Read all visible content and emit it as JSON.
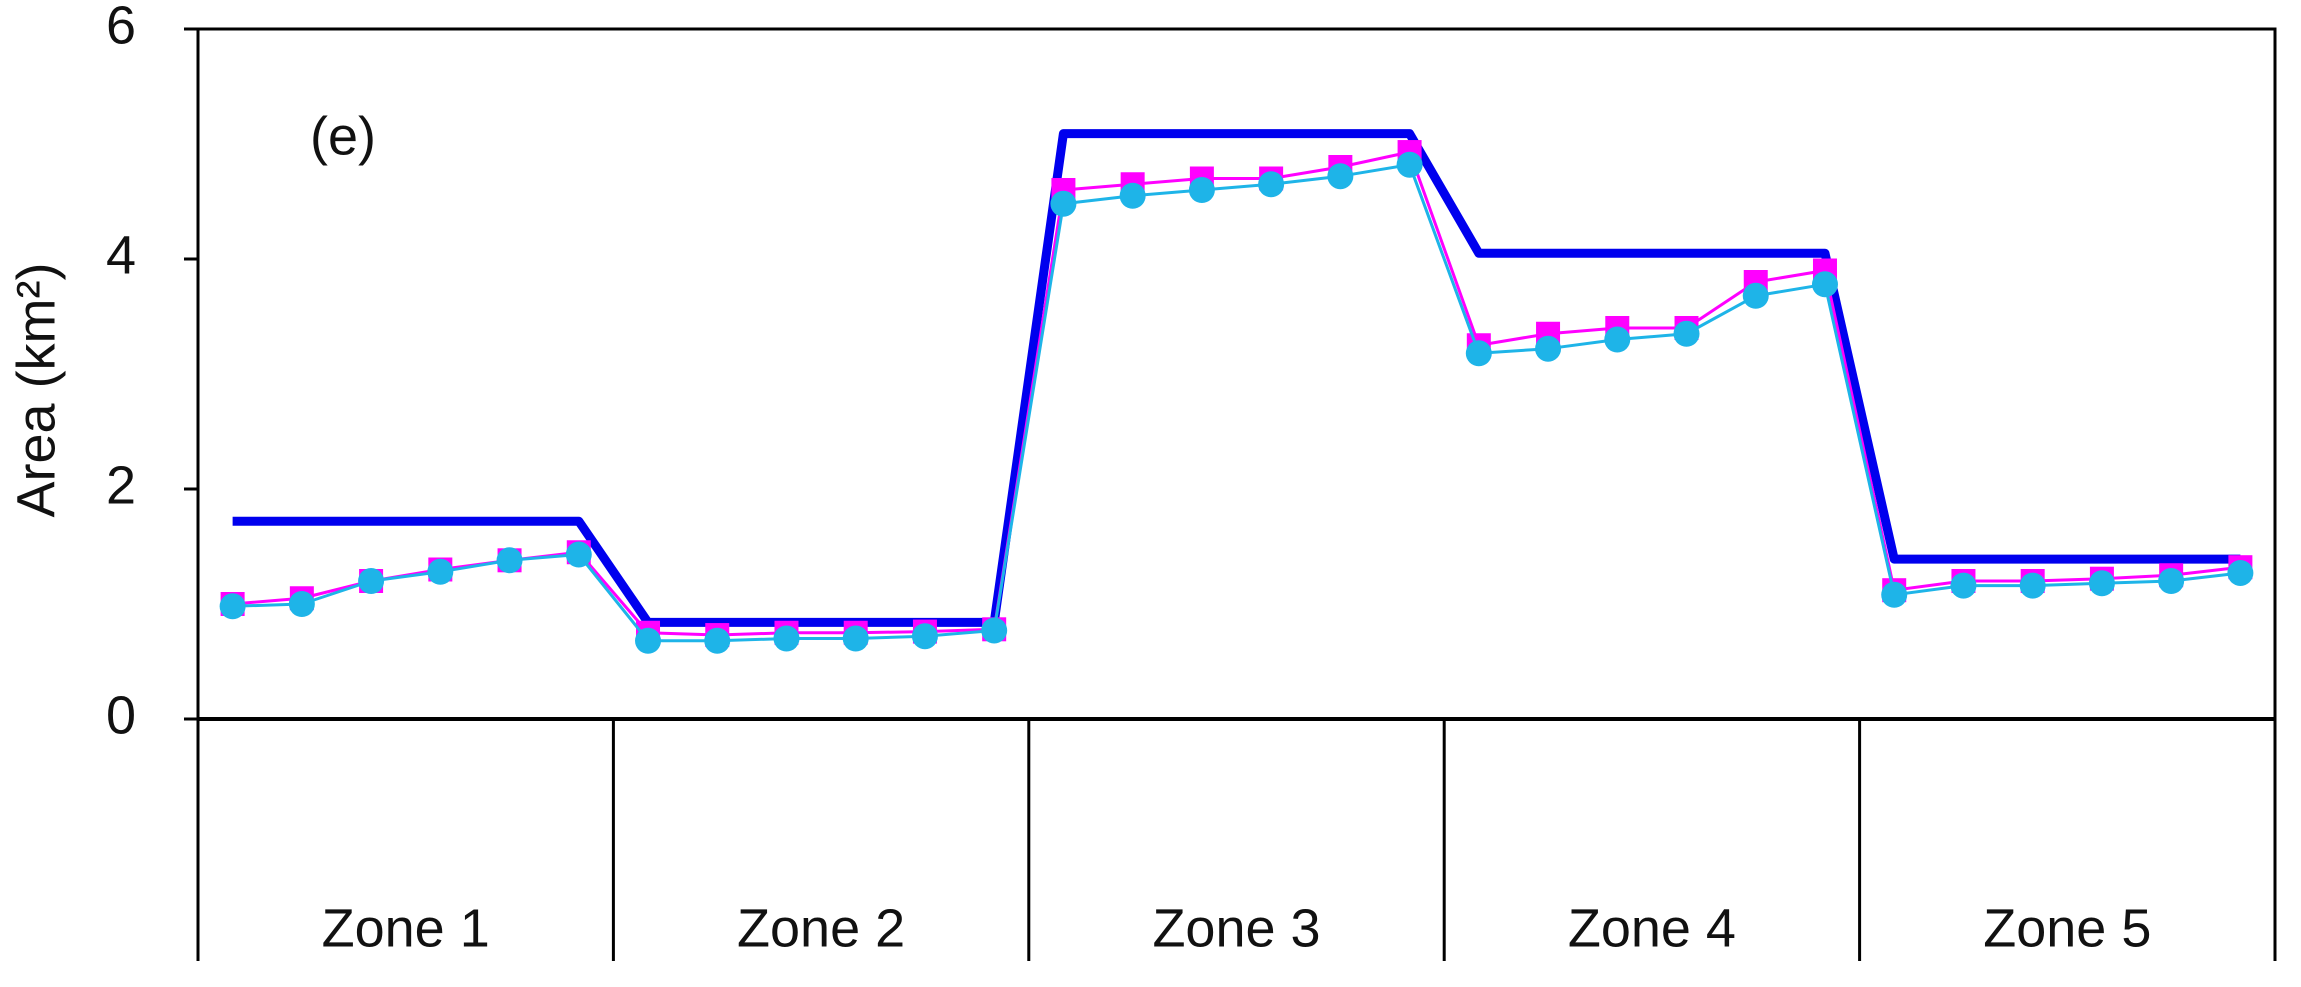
{
  "chart_data": {
    "type": "line",
    "annotation": "(e)",
    "y_label": "Area (km²)",
    "groups": [
      "Zone 1",
      "Zone 2",
      "Zone 3",
      "Zone 4",
      "Zone 5"
    ],
    "points_per_group": 6,
    "ylim": [
      0,
      6
    ],
    "yticks": [
      0,
      2,
      4,
      6
    ],
    "grid": false,
    "series": [
      {
        "color": "#0000ee",
        "marker": "none",
        "line_width": 9,
        "values": [
          1.72,
          1.72,
          1.72,
          1.72,
          1.72,
          1.72,
          0.84,
          0.84,
          0.84,
          0.84,
          0.84,
          0.84,
          5.09,
          5.09,
          5.09,
          5.09,
          5.09,
          5.09,
          4.05,
          4.05,
          4.05,
          4.05,
          4.05,
          4.05,
          1.39,
          1.39,
          1.39,
          1.39,
          1.39,
          1.39
        ]
      },
      {
        "color": "#ff00ff",
        "marker": "square",
        "line_width": 3,
        "values": [
          1.0,
          1.05,
          1.2,
          1.3,
          1.38,
          1.45,
          0.75,
          0.73,
          0.75,
          0.75,
          0.76,
          0.78,
          4.6,
          4.65,
          4.7,
          4.7,
          4.8,
          4.93,
          3.25,
          3.35,
          3.4,
          3.4,
          3.8,
          3.9,
          1.12,
          1.2,
          1.2,
          1.22,
          1.25,
          1.32
        ]
      },
      {
        "color": "#1eb4e8",
        "marker": "circle",
        "line_width": 3,
        "values": [
          0.98,
          1.0,
          1.2,
          1.28,
          1.38,
          1.43,
          0.68,
          0.68,
          0.7,
          0.7,
          0.72,
          0.77,
          4.48,
          4.55,
          4.6,
          4.65,
          4.72,
          4.82,
          3.18,
          3.22,
          3.3,
          3.35,
          3.68,
          3.78,
          1.08,
          1.16,
          1.16,
          1.18,
          1.2,
          1.27
        ]
      }
    ]
  }
}
